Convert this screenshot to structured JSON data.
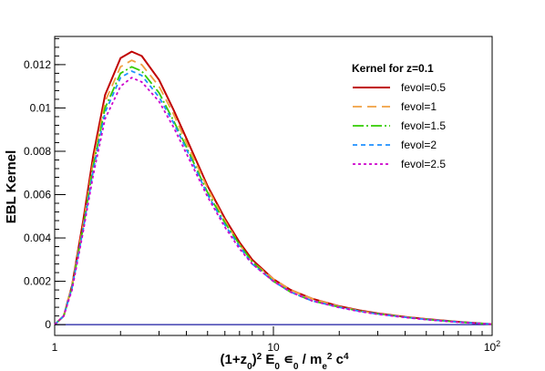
{
  "chart_data": {
    "type": "line",
    "title": "",
    "xlabel": {
      "base": "(1+z",
      "sub1": "0",
      "mid1": ")",
      "sup1": "2",
      "mid2": " E",
      "sub2": "0",
      "mid3": " ∊",
      "sub3": "0",
      "mid4": " / m",
      "sub4": "e",
      "sup4": "2",
      "mid5": " c",
      "sup5": "4"
    },
    "ylabel": "EBL Kernel",
    "x_scale": "log",
    "xlim": [
      1,
      100
    ],
    "ylim": [
      -0.0005,
      0.0133
    ],
    "x_ticks": [
      {
        "value": 1,
        "label": "1"
      },
      {
        "value": 10,
        "label": "10"
      },
      {
        "value": 100,
        "label": "10",
        "sup": "2"
      }
    ],
    "y_ticks": [
      {
        "value": 0,
        "label": "0"
      },
      {
        "value": 0.002,
        "label": "0.002"
      },
      {
        "value": 0.004,
        "label": "0.004"
      },
      {
        "value": 0.006,
        "label": "0.006"
      },
      {
        "value": 0.008,
        "label": "0.008"
      },
      {
        "value": 0.01,
        "label": "0.01"
      },
      {
        "value": 0.012,
        "label": "0.012"
      }
    ],
    "legend": {
      "title": "Kernel for z=0.1",
      "position": "top-right"
    },
    "x": [
      1.0,
      1.1,
      1.2,
      1.35,
      1.5,
      1.7,
      2.0,
      2.25,
      2.5,
      3.0,
      3.5,
      4.0,
      5.0,
      6.0,
      7.0,
      8.0,
      10.0,
      12.0,
      15.0,
      20.0,
      25.0,
      30.0,
      40.0,
      50.0,
      70.0,
      100.0
    ],
    "series": [
      {
        "name": "fevol=0.5",
        "color": "#c00000",
        "dash": "solid",
        "values": [
          0.0,
          0.0004,
          0.0018,
          0.0048,
          0.0078,
          0.0106,
          0.0123,
          0.0126,
          0.0124,
          0.0113,
          0.0099,
          0.0086,
          0.0064,
          0.0049,
          0.0038,
          0.003,
          0.0021,
          0.0016,
          0.0012,
          0.00085,
          0.00065,
          0.00052,
          0.00036,
          0.00026,
          0.00013,
          2e-05
        ]
      },
      {
        "name": "fevol=1",
        "color": "#f0a040",
        "dash": "10,6",
        "values": [
          0.0,
          0.0004,
          0.0018,
          0.0046,
          0.0075,
          0.0103,
          0.0119,
          0.0122,
          0.012,
          0.011,
          0.0097,
          0.0084,
          0.0063,
          0.0048,
          0.0037,
          0.0029,
          0.0021,
          0.0016,
          0.0012,
          0.00083,
          0.00063,
          0.0005,
          0.00035,
          0.00025,
          0.00012,
          2e-05
        ]
      },
      {
        "name": "fevol=1.5",
        "color": "#33cc00",
        "dash": "12,3,2,3",
        "values": [
          0.0,
          0.0004,
          0.0017,
          0.0045,
          0.0073,
          0.01,
          0.0116,
          0.0119,
          0.0117,
          0.0107,
          0.0094,
          0.0082,
          0.0061,
          0.0047,
          0.0037,
          0.0029,
          0.002,
          0.0015,
          0.0011,
          0.00081,
          0.00062,
          0.0005,
          0.00034,
          0.00024,
          0.00012,
          2e-05
        ]
      },
      {
        "name": "fevol=2",
        "color": "#1e90ff",
        "dash": "5,4",
        "values": [
          0.0,
          0.0004,
          0.0017,
          0.0044,
          0.0071,
          0.0098,
          0.0114,
          0.0117,
          0.0115,
          0.0105,
          0.0093,
          0.0081,
          0.006,
          0.0046,
          0.0036,
          0.0028,
          0.002,
          0.0015,
          0.0011,
          0.0008,
          0.00061,
          0.00049,
          0.00034,
          0.00024,
          0.00012,
          2e-05
        ]
      },
      {
        "name": "fevol=2.5",
        "color": "#cc00cc",
        "dash": "3,3",
        "values": [
          0.0,
          0.0004,
          0.0016,
          0.0043,
          0.0069,
          0.0095,
          0.011,
          0.0114,
          0.0112,
          0.0103,
          0.0091,
          0.0079,
          0.0059,
          0.0045,
          0.0035,
          0.0028,
          0.002,
          0.0015,
          0.0011,
          0.00079,
          0.0006,
          0.00048,
          0.00033,
          0.00023,
          0.00011,
          2e-05
        ]
      }
    ],
    "baseline": {
      "value": 0,
      "color": "#1a1aa0"
    },
    "grid": false
  }
}
